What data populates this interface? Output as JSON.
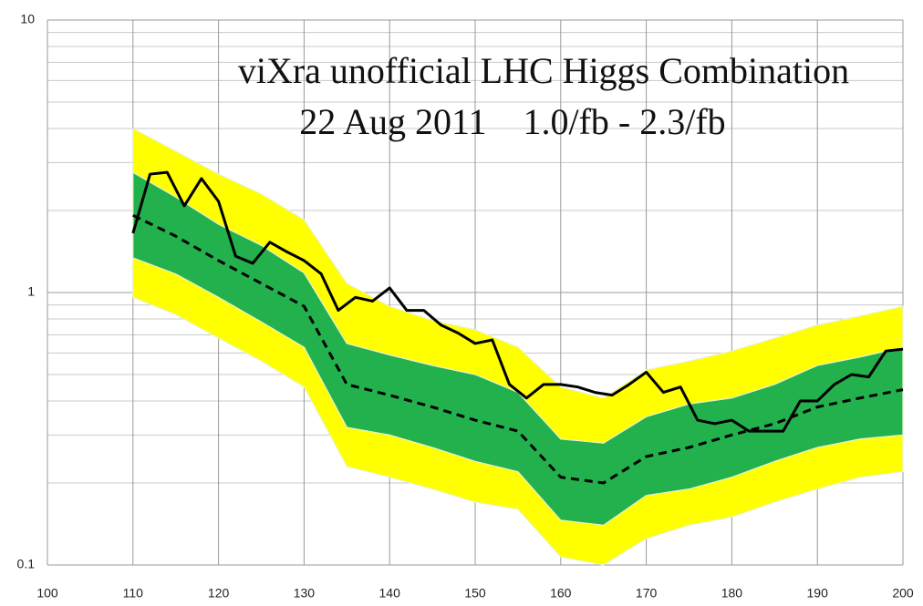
{
  "chart_data": {
    "type": "line",
    "title": "viXra unofficial LHC Higgs Combination",
    "subtitle": "22 Aug 2011    1.0/fb - 2.3/fb",
    "log_y": true,
    "grid": true,
    "xlim": [
      100,
      200
    ],
    "ylim": [
      0.1,
      10
    ],
    "xticks": [
      100,
      110,
      120,
      130,
      140,
      150,
      160,
      170,
      180,
      190,
      200
    ],
    "yticks": [
      0.1,
      1,
      10
    ],
    "y_minor_ticks": [
      0.2,
      0.3,
      0.4,
      0.5,
      0.6,
      0.7,
      0.8,
      0.9,
      2,
      3,
      4,
      5,
      6,
      7,
      8,
      9
    ],
    "band_x": [
      110,
      115,
      120,
      125,
      130,
      135,
      140,
      145,
      150,
      155,
      160,
      165,
      170,
      175,
      180,
      185,
      190,
      195,
      200
    ],
    "bands": [
      {
        "color": "#ffff00",
        "high": [
          4.0,
          3.3,
          2.72,
          2.3,
          1.85,
          1.08,
          0.89,
          0.79,
          0.73,
          0.63,
          0.45,
          0.41,
          0.52,
          0.56,
          0.61,
          0.68,
          0.76,
          0.82,
          0.89
        ],
        "low": [
          0.96,
          0.83,
          0.68,
          0.56,
          0.45,
          0.23,
          0.21,
          0.19,
          0.17,
          0.16,
          0.107,
          0.1,
          0.125,
          0.14,
          0.15,
          0.17,
          0.19,
          0.21,
          0.22
        ]
      },
      {
        "color": "#22b14c",
        "high": [
          2.76,
          2.24,
          1.78,
          1.49,
          1.18,
          0.65,
          0.59,
          0.54,
          0.5,
          0.43,
          0.29,
          0.28,
          0.35,
          0.39,
          0.41,
          0.46,
          0.54,
          0.58,
          0.63
        ],
        "low": [
          1.34,
          1.17,
          0.96,
          0.78,
          0.63,
          0.32,
          0.3,
          0.27,
          0.24,
          0.22,
          0.146,
          0.14,
          0.18,
          0.19,
          0.21,
          0.24,
          0.27,
          0.29,
          0.3
        ]
      }
    ],
    "series": [
      {
        "color": "#000000",
        "dashed": true,
        "x": [
          110,
          115,
          120,
          125,
          130,
          135,
          140,
          145,
          150,
          155,
          160,
          165,
          170,
          175,
          180,
          185,
          190,
          195,
          200
        ],
        "values": [
          1.92,
          1.61,
          1.31,
          1.08,
          0.89,
          0.46,
          0.42,
          0.38,
          0.34,
          0.31,
          0.21,
          0.2,
          0.25,
          0.27,
          0.3,
          0.33,
          0.38,
          0.41,
          0.44
        ]
      },
      {
        "color": "#000000",
        "dashed": false,
        "x": [
          110,
          112,
          114,
          116,
          118,
          120,
          122,
          124,
          126,
          128,
          130,
          132,
          134,
          136,
          138,
          140,
          142,
          144,
          146,
          148,
          150,
          152,
          154,
          156,
          158,
          160,
          162,
          164,
          166,
          168,
          170,
          172,
          174,
          176,
          178,
          180,
          182,
          184,
          186,
          188,
          190,
          192,
          194,
          196,
          198,
          200
        ],
        "values": [
          1.65,
          2.72,
          2.76,
          2.08,
          2.62,
          2.16,
          1.36,
          1.28,
          1.53,
          1.41,
          1.31,
          1.17,
          0.86,
          0.96,
          0.93,
          1.04,
          0.86,
          0.86,
          0.76,
          0.71,
          0.65,
          0.67,
          0.46,
          0.41,
          0.46,
          0.46,
          0.45,
          0.43,
          0.42,
          0.46,
          0.51,
          0.43,
          0.45,
          0.34,
          0.33,
          0.34,
          0.31,
          0.31,
          0.31,
          0.4,
          0.4,
          0.46,
          0.5,
          0.49,
          0.61,
          0.62
        ]
      }
    ]
  }
}
